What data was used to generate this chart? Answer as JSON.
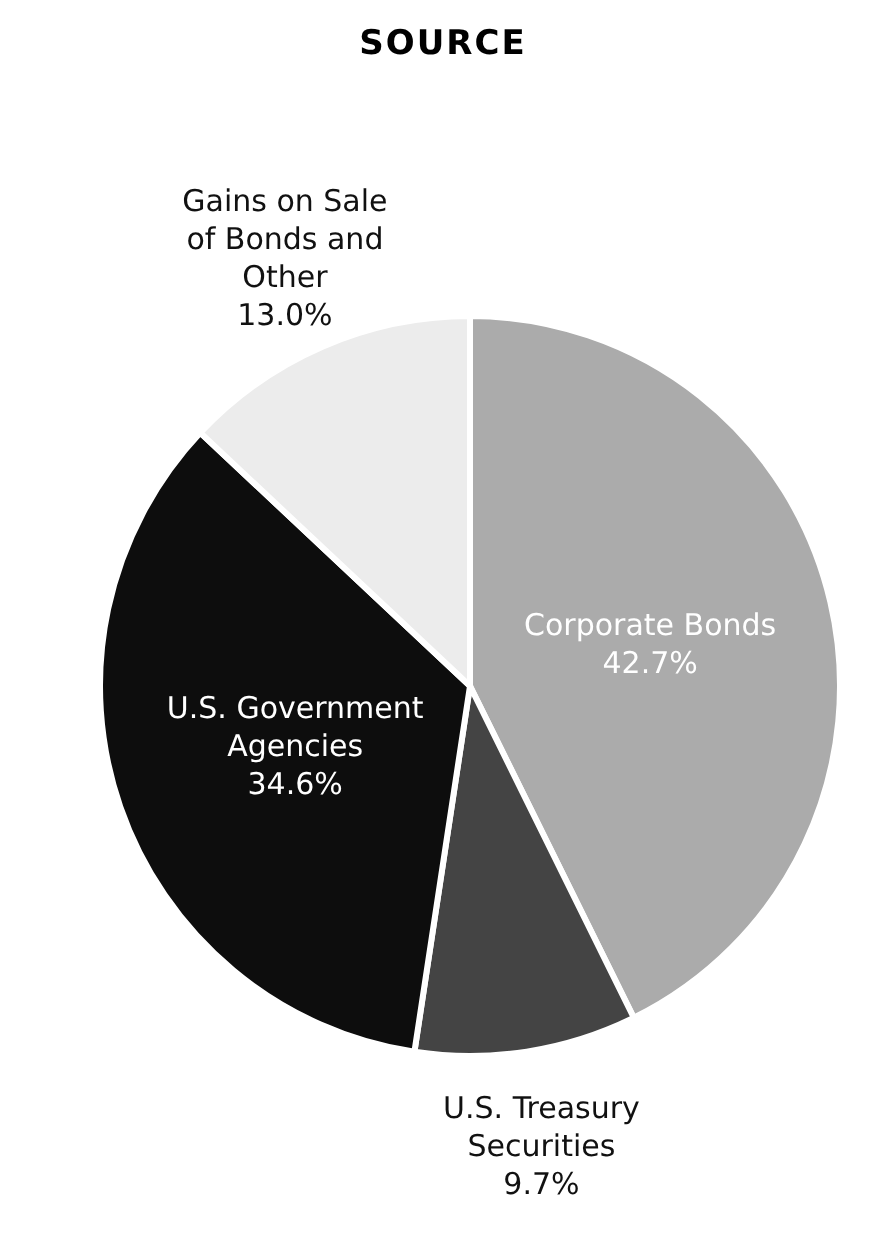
{
  "chart_data": {
    "type": "pie",
    "title": "SOURCE",
    "categories": [
      "Corporate Bonds",
      "U.S. Treasury Securities",
      "U.S. Government Agencies",
      "Gains on Sale of Bonds and Other"
    ],
    "values": [
      42.7,
      9.7,
      34.6,
      13.0
    ],
    "value_labels": [
      "42.7%",
      "9.7%",
      "34.6%",
      "13.0%"
    ],
    "colors": [
      "#ababab",
      "#444444",
      "#0d0d0d",
      "#ececec"
    ]
  }
}
